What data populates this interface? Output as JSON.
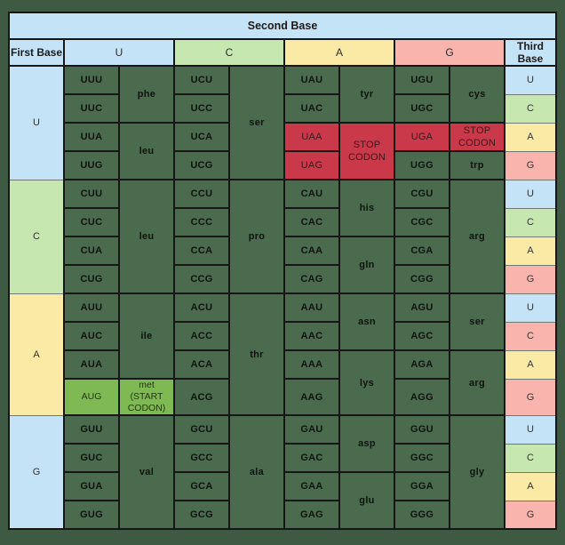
{
  "colors": {
    "background": "#3e5a43",
    "cell_green": "#4a6b4e",
    "stop_red": "#c9394a",
    "start_green": "#7fb953",
    "pastel_blue": "#c5e3f6",
    "pastel_green": "#c6e7b0",
    "pastel_yellow": "#fbe9a6",
    "pastel_pink": "#f9b5ad",
    "border": "#161616"
  },
  "table": {
    "second_base_label": "Second Base",
    "first_base_label": "First Base",
    "third_base_label": "Third Base",
    "column_bases": [
      "U",
      "C",
      "A",
      "G"
    ],
    "sections": [
      {
        "first_base": "U",
        "codons": {
          "u": [
            "UUU",
            "UUC",
            "UUA",
            "UUG"
          ],
          "c": [
            "UCU",
            "UCC",
            "UCA",
            "UCG"
          ],
          "a": [
            "UAU",
            "UAC",
            "UAA",
            "UAG"
          ],
          "g": [
            "UGU",
            "UGC",
            "UGA",
            "UGG"
          ]
        },
        "aminos": {
          "u": [
            "phe",
            "leu"
          ],
          "c": [
            "ser"
          ],
          "a": [
            "tyr",
            "STOP CODON"
          ],
          "g": [
            "cys",
            "STOP CODON",
            "trp"
          ]
        },
        "third_bases": [
          "U",
          "C",
          "A",
          "G"
        ]
      },
      {
        "first_base": "C",
        "codons": {
          "u": [
            "CUU",
            "CUC",
            "CUA",
            "CUG"
          ],
          "c": [
            "CCU",
            "CCC",
            "CCA",
            "CCG"
          ],
          "a": [
            "CAU",
            "CAC",
            "CAA",
            "CAG"
          ],
          "g": [
            "CGU",
            "CGC",
            "CGA",
            "CGG"
          ]
        },
        "aminos": {
          "u": [
            "leu"
          ],
          "c": [
            "pro"
          ],
          "a": [
            "his",
            "gln"
          ],
          "g": [
            "arg"
          ]
        },
        "third_bases": [
          "U",
          "C",
          "A",
          "G"
        ]
      },
      {
        "first_base": "A",
        "codons": {
          "u": [
            "AUU",
            "AUC",
            "AUA",
            "AUG"
          ],
          "c": [
            "ACU",
            "ACC",
            "ACA",
            "ACG"
          ],
          "a": [
            "AAU",
            "AAC",
            "AAA",
            "AAG"
          ],
          "g": [
            "AGU",
            "AGC",
            "AGA",
            "AGG"
          ]
        },
        "aminos": {
          "u": [
            "ile",
            "met (START CODON)"
          ],
          "c": [
            "thr"
          ],
          "a": [
            "asn",
            "lys"
          ],
          "g": [
            "ser",
            "arg"
          ]
        },
        "third_bases": [
          "U",
          "C",
          "A",
          "G"
        ]
      },
      {
        "first_base": "G",
        "codons": {
          "u": [
            "GUU",
            "GUC",
            "GUA",
            "GUG"
          ],
          "c": [
            "GCU",
            "GCC",
            "GCA",
            "GCG"
          ],
          "a": [
            "GAU",
            "GAC",
            "GAA",
            "GAG"
          ],
          "g": [
            "GGU",
            "GGC",
            "GGA",
            "GGG"
          ]
        },
        "aminos": {
          "u": [
            "val"
          ],
          "c": [
            "ala"
          ],
          "a": [
            "asp",
            "glu"
          ],
          "g": [
            "gly"
          ]
        },
        "third_bases": [
          "U",
          "C",
          "A",
          "G"
        ]
      }
    ]
  }
}
